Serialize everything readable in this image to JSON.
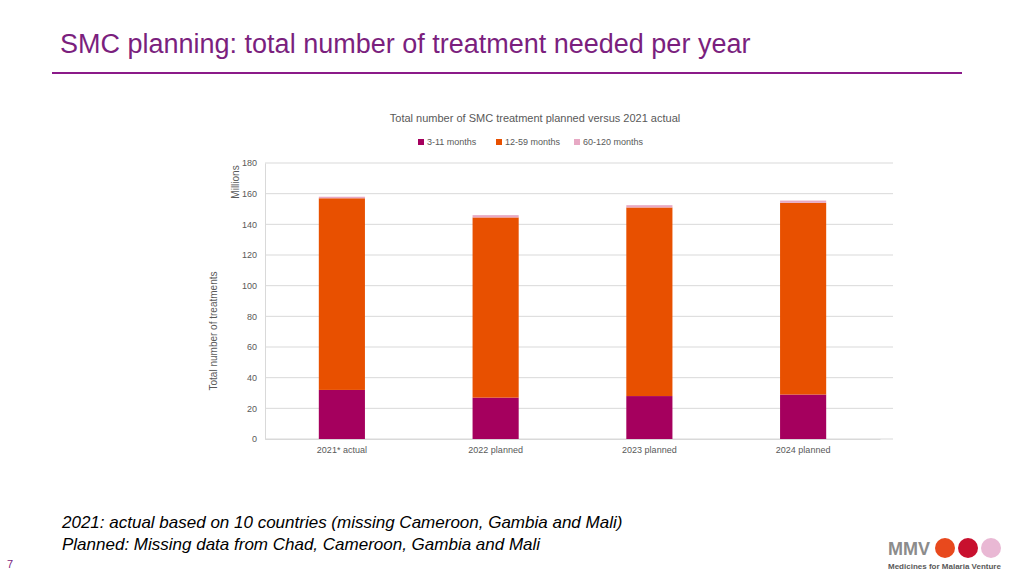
{
  "page": {
    "title": "SMC planning: total number of treatment needed per year",
    "notes": [
      "2021: actual based on 10 countries (missing Cameroon, Gambia and Mali)",
      "Planned: Missing data from Chad, Cameroon, Gambia and Mali"
    ],
    "page_number": "7",
    "logo": [
      "MMV",
      "Medicines for Malaria Venture"
    ]
  },
  "chart_data": {
    "type": "bar",
    "stacked": true,
    "grid": true,
    "legend": "top",
    "title": "Total number of SMC treatment planned versus 2021 actual",
    "y_label": "Total number of treatments",
    "y_units": "Millions",
    "categories": [
      "2021* actual",
      "2022 planned",
      "2023 planned",
      "2024 planned"
    ],
    "series": [
      {
        "name": "3-11 months",
        "color": "#a5005e",
        "values": [
          32,
          27,
          28,
          29
        ]
      },
      {
        "name": "12-59 months",
        "color": "#e85000",
        "values": [
          125,
          117.5,
          123,
          125
        ]
      },
      {
        "name": "60-120 months",
        "color": "#e7a9c4",
        "values": [
          1,
          1.5,
          1.5,
          1.5
        ]
      }
    ],
    "ylim": [
      0,
      180
    ],
    "yticks": [
      0,
      20,
      40,
      60,
      80,
      100,
      120,
      140,
      160,
      180
    ]
  }
}
